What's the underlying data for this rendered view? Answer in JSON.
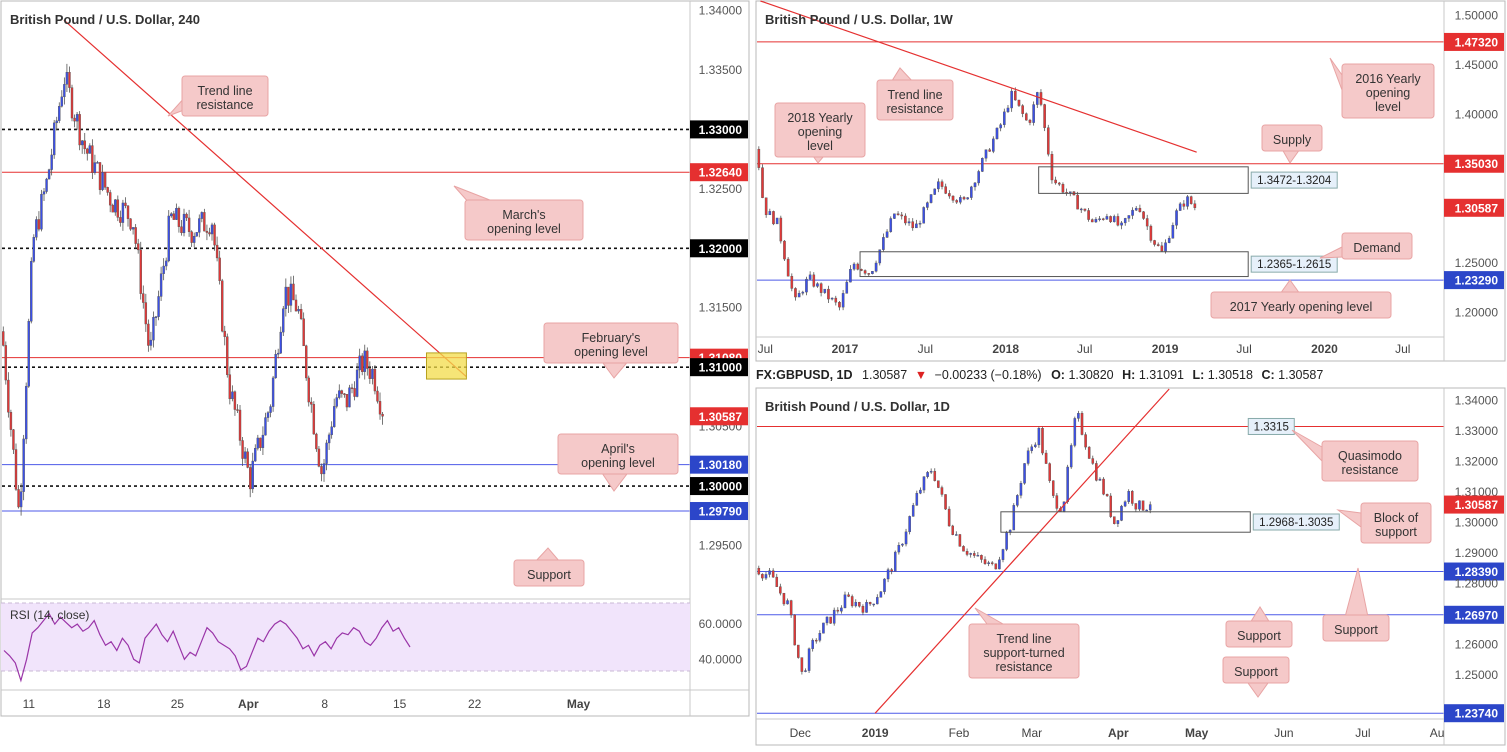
{
  "colors": {
    "bull": "#3c50e6",
    "bear": "#e03838",
    "red_line": "#e53030",
    "blue_line": "#4d5ae8",
    "black_line": "#111111",
    "callout_bg": "#f5c9c9",
    "callout_border": "#e8a4a4",
    "zone_fill": "#f3dc4a",
    "rsi_bg": "#f1e4fb",
    "rsi_line": "#9a35a8",
    "price_tag_red": "#e53030",
    "price_tag_blue": "#2c46c9",
    "price_tag_black": "#000000",
    "price_tag_current": "#e53030"
  },
  "chart_data": [
    {
      "id": "h4",
      "type": "candlestick",
      "title": "British Pound / U.S. Dollar, 240",
      "ylim": [
        1.2905,
        1.3408
      ],
      "y_ticks": [
        "1.34000",
        "1.33500",
        "1.32500",
        "1.31500",
        "1.30500",
        "1.29500"
      ],
      "x_ticks": [
        {
          "label": "11",
          "t": 0.039
        },
        {
          "label": "18",
          "t": 0.148
        },
        {
          "label": "25",
          "t": 0.255
        },
        {
          "label": "Apr",
          "t": 0.358
        },
        {
          "label": "8",
          "t": 0.469
        },
        {
          "label": "15",
          "t": 0.578
        },
        {
          "label": "22",
          "t": 0.687
        },
        {
          "label": "May",
          "t": 0.838
        }
      ],
      "levels": [
        {
          "price": 1.33,
          "style": "dotted",
          "color": "black",
          "tag": "1.33000"
        },
        {
          "price": 1.3264,
          "style": "solid",
          "color": "red",
          "tag": "1.32640"
        },
        {
          "price": 1.32,
          "style": "dotted",
          "color": "black",
          "tag": "1.32000"
        },
        {
          "price": 1.3108,
          "style": "solid",
          "color": "red",
          "tag": "1.31080"
        },
        {
          "price": 1.31,
          "style": "dotted",
          "color": "black",
          "tag": "1.31000"
        },
        {
          "price": 1.3018,
          "style": "solid",
          "color": "blue",
          "tag": "1.30180"
        },
        {
          "price": 1.3,
          "style": "dotted",
          "color": "black",
          "tag": "1.30000"
        },
        {
          "price": 1.2979,
          "style": "solid",
          "color": "blue",
          "tag": "1.29790"
        }
      ],
      "current": {
        "price": 1.30587,
        "tag": "1.30587"
      },
      "trendline": {
        "x1": 0.09,
        "p1": 1.3392,
        "x2": 0.675,
        "p2": 1.3092
      },
      "zone": {
        "x1": 0.617,
        "x2": 0.675,
        "p1": 1.3112,
        "p2": 1.309
      },
      "anchors": [
        [
          0,
          1.313
        ],
        [
          0.025,
          1.2975
        ],
        [
          0.045,
          1.3205
        ],
        [
          0.065,
          1.3255
        ],
        [
          0.09,
          1.3345
        ],
        [
          0.12,
          1.3285
        ],
        [
          0.16,
          1.324
        ],
        [
          0.19,
          1.3225
        ],
        [
          0.215,
          1.311
        ],
        [
          0.245,
          1.3225
        ],
        [
          0.275,
          1.3215
        ],
        [
          0.305,
          1.3225
        ],
        [
          0.33,
          1.3085
        ],
        [
          0.36,
          1.3005
        ],
        [
          0.39,
          1.307
        ],
        [
          0.41,
          1.3165
        ],
        [
          0.43,
          1.315
        ],
        [
          0.445,
          1.3085
        ],
        [
          0.465,
          1.301
        ],
        [
          0.485,
          1.3075
        ],
        [
          0.5,
          1.307
        ],
        [
          0.525,
          1.3105
        ],
        [
          0.54,
          1.3095
        ],
        [
          0.555,
          1.306
        ]
      ],
      "candle_end": 0.555,
      "annotations": [
        "Trend line resistance",
        "March's opening level",
        "February's opening level",
        "April's opening level",
        "Support"
      ],
      "rsi": {
        "label": "RSI (14, close)",
        "ylim": [
          26,
          72
        ],
        "ticks": [
          "60.0000",
          "40.0000"
        ],
        "band_hi": 70,
        "band_lo": 30,
        "values": [
          45,
          42,
          38,
          28,
          40,
          55,
          58,
          62,
          66,
          60,
          64,
          61,
          58,
          60,
          56,
          58,
          62,
          54,
          48,
          50,
          45,
          52,
          48,
          40,
          38,
          52,
          56,
          60,
          54,
          50,
          56,
          48,
          40,
          44,
          42,
          50,
          58,
          55,
          50,
          48,
          46,
          42,
          34,
          36,
          44,
          52,
          50,
          56,
          60,
          62,
          60,
          56,
          52,
          46,
          48,
          42,
          48,
          50,
          46,
          52,
          55,
          54,
          58,
          56,
          50,
          48,
          52,
          58,
          62,
          56,
          58,
          52,
          47
        ]
      }
    },
    {
      "id": "w1",
      "type": "candlestick",
      "title": "British Pound / U.S. Dollar, 1W",
      "ylim": [
        1.1755,
        1.5145
      ],
      "y_ticks": [
        "1.50000",
        "1.45000",
        "1.40000",
        "1.25000",
        "1.20000"
      ],
      "x_ticks": [
        {
          "label": "Jul",
          "t": 0.012
        },
        {
          "label": "2017",
          "t": 0.128
        },
        {
          "label": "Jul",
          "t": 0.245
        },
        {
          "label": "2018",
          "t": 0.362
        },
        {
          "label": "Jul",
          "t": 0.477
        },
        {
          "label": "2019",
          "t": 0.594
        },
        {
          "label": "Jul",
          "t": 0.709
        },
        {
          "label": "2020",
          "t": 0.826
        },
        {
          "label": "Jul",
          "t": 0.94
        }
      ],
      "levels": [
        {
          "price": 1.4732,
          "style": "solid",
          "color": "red",
          "tag": "1.47320"
        },
        {
          "price": 1.3503,
          "style": "solid",
          "color": "red",
          "tag": "1.35030"
        },
        {
          "price": 1.2329,
          "style": "solid",
          "color": "blue",
          "tag": "1.23290"
        }
      ],
      "current": {
        "price": 1.30587,
        "tag": "1.30587"
      },
      "trendline": {
        "x1": 0.005,
        "p1": 1.5145,
        "x2": 0.64,
        "p2": 1.362
      },
      "boxes": [
        {
          "x1": 0.41,
          "x2": 0.715,
          "p1": 1.3472,
          "p2": 1.3204,
          "label": "1.3472-1.3204"
        },
        {
          "x1": 0.15,
          "x2": 0.715,
          "p1": 1.2615,
          "p2": 1.2365,
          "label": "1.2365-1.2615"
        }
      ],
      "anchors": [
        [
          0.0,
          1.365
        ],
        [
          0.01,
          1.305
        ],
        [
          0.03,
          1.29
        ],
        [
          0.055,
          1.21
        ],
        [
          0.075,
          1.235
        ],
        [
          0.12,
          1.205
        ],
        [
          0.14,
          1.25
        ],
        [
          0.165,
          1.24
        ],
        [
          0.2,
          1.3
        ],
        [
          0.23,
          1.285
        ],
        [
          0.265,
          1.33
        ],
        [
          0.3,
          1.31
        ],
        [
          0.33,
          1.355
        ],
        [
          0.355,
          1.39
        ],
        [
          0.37,
          1.42
        ],
        [
          0.395,
          1.39
        ],
        [
          0.41,
          1.425
        ],
        [
          0.43,
          1.335
        ],
        [
          0.46,
          1.315
        ],
        [
          0.49,
          1.29
        ],
        [
          0.51,
          1.3
        ],
        [
          0.53,
          1.285
        ],
        [
          0.555,
          1.31
        ],
        [
          0.575,
          1.275
        ],
        [
          0.59,
          1.26
        ],
        [
          0.61,
          1.3
        ],
        [
          0.625,
          1.315
        ],
        [
          0.64,
          1.305
        ]
      ],
      "candle_end": 0.64,
      "annotations": [
        "Trend line resistance",
        "2018 Yearly opening level",
        "2016 Yearly opening level",
        "Supply",
        "Demand",
        "2017 Yearly opening level"
      ]
    },
    {
      "id": "d1",
      "type": "candlestick",
      "title": "British Pound / U.S. Dollar, 1D",
      "ylim": [
        1.2355,
        1.3438
      ],
      "y_ticks": [
        "1.34000",
        "1.33000",
        "1.32000",
        "1.31000",
        "1.30000",
        "1.29000",
        "1.28000",
        "1.26000",
        "1.25000"
      ],
      "x_ticks": [
        {
          "label": "Dec",
          "t": 0.063
        },
        {
          "label": "2019",
          "t": 0.172
        },
        {
          "label": "Feb",
          "t": 0.294
        },
        {
          "label": "Mar",
          "t": 0.4
        },
        {
          "label": "Apr",
          "t": 0.526
        },
        {
          "label": "May",
          "t": 0.64
        },
        {
          "label": "Jun",
          "t": 0.767
        },
        {
          "label": "Jul",
          "t": 0.882
        },
        {
          "label": "Au",
          "t": 0.99
        }
      ],
      "levels": [
        {
          "price": 1.3315,
          "style": "solid",
          "color": "red",
          "tag": ""
        },
        {
          "price": 1.2839,
          "style": "solid",
          "color": "blue",
          "tag": "1.28390"
        },
        {
          "price": 1.2697,
          "style": "solid",
          "color": "blue",
          "tag": "1.26970"
        },
        {
          "price": 1.2374,
          "style": "solid",
          "color": "blue",
          "tag": "1.23740"
        }
      ],
      "current": {
        "price": 1.30587,
        "tag": "1.30587"
      },
      "trendline": {
        "x1": 0.172,
        "p1": 1.2374,
        "x2": 0.6,
        "p2": 1.3438
      },
      "boxes": [
        {
          "x1": 0.355,
          "x2": 0.718,
          "p1": 1.3035,
          "p2": 1.2968,
          "label": "1.2968-1.3035"
        }
      ],
      "box_labels": [
        {
          "price": 1.3315,
          "x": 0.718,
          "label": "1.3315"
        }
      ],
      "anchors": [
        [
          0.0,
          1.285
        ],
        [
          0.02,
          1.282
        ],
        [
          0.045,
          1.273
        ],
        [
          0.065,
          1.25
        ],
        [
          0.085,
          1.262
        ],
        [
          0.105,
          1.268
        ],
        [
          0.13,
          1.275
        ],
        [
          0.16,
          1.272
        ],
        [
          0.18,
          1.278
        ],
        [
          0.205,
          1.29
        ],
        [
          0.235,
          1.31
        ],
        [
          0.255,
          1.318
        ],
        [
          0.28,
          1.3
        ],
        [
          0.3,
          1.292
        ],
        [
          0.32,
          1.288
        ],
        [
          0.345,
          1.285
        ],
        [
          0.37,
          1.3
        ],
        [
          0.39,
          1.32
        ],
        [
          0.41,
          1.33
        ],
        [
          0.43,
          1.308
        ],
        [
          0.445,
          1.305
        ],
        [
          0.465,
          1.336
        ],
        [
          0.49,
          1.318
        ],
        [
          0.505,
          1.31
        ],
        [
          0.52,
          1.3
        ],
        [
          0.54,
          1.31
        ],
        [
          0.555,
          1.305
        ],
        [
          0.575,
          1.306
        ]
      ],
      "candle_end": 0.575,
      "annotations": [
        "Quasimodo resistance",
        "Block of support",
        "Trend line support-turned resistance",
        "Support",
        "Support",
        "Support"
      ]
    }
  ],
  "info_line": {
    "symbol": "FX:GBPUSD, 1D",
    "price": "1.30587",
    "arrow": "▼",
    "change": "−0.00233 (−0.18%)",
    "o_label": "O:",
    "o": "1.30820",
    "h_label": "H:",
    "h": "1.31091",
    "l_label": "L:",
    "l": "1.30518",
    "c_label": "C:",
    "c": "1.30587"
  },
  "callouts": {
    "h4_trend": "Trend line resistance",
    "h4_march": "March's opening level",
    "h4_feb": "February's opening level",
    "h4_april": "April's opening level",
    "h4_support": "Support",
    "w_trend": "Trend line resistance",
    "w_2018": "2018 Yearly opening level",
    "w_2016": "2016 Yearly opening level",
    "w_supply": "Supply",
    "w_demand": "Demand",
    "w_2017": "2017 Yearly opening level",
    "d_qm": "Quasimodo resistance",
    "d_block": "Block of support",
    "d_trend": "Trend line support-turned resistance",
    "d_support1": "Support",
    "d_support2": "Support",
    "d_support3": "Support"
  }
}
